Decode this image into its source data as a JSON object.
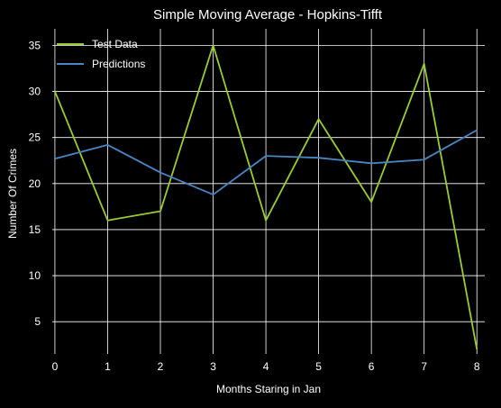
{
  "chart_data": {
    "type": "line",
    "title": "Simple Moving Average - Hopkins-Tifft",
    "xlabel": "Months Staring in Jan",
    "ylabel": "Number Of Crimes",
    "x": [
      0,
      1,
      2,
      3,
      4,
      5,
      6,
      7,
      8
    ],
    "x_ticks": [
      "0",
      "1",
      "2",
      "3",
      "4",
      "5",
      "6",
      "7",
      "8"
    ],
    "y_ticks": [
      "5",
      "10",
      "15",
      "20",
      "25",
      "30",
      "35"
    ],
    "xlim": [
      -0.05,
      8.15
    ],
    "ylim": [
      1.5,
      36.8
    ],
    "grid": true,
    "legend_position": "upper-left",
    "series": [
      {
        "name": "Test Data",
        "color": "#9acd32",
        "values": [
          30,
          16,
          17,
          35,
          16,
          27,
          18,
          33,
          2
        ]
      },
      {
        "name": "Predictions",
        "color": "#4a86c4",
        "values": [
          22.7,
          24.2,
          21.2,
          18.8,
          23.0,
          22.8,
          22.2,
          22.6,
          25.8
        ]
      }
    ],
    "colors": {
      "background": "#000000",
      "text": "#ffffff",
      "grid": "#ffffff"
    }
  }
}
